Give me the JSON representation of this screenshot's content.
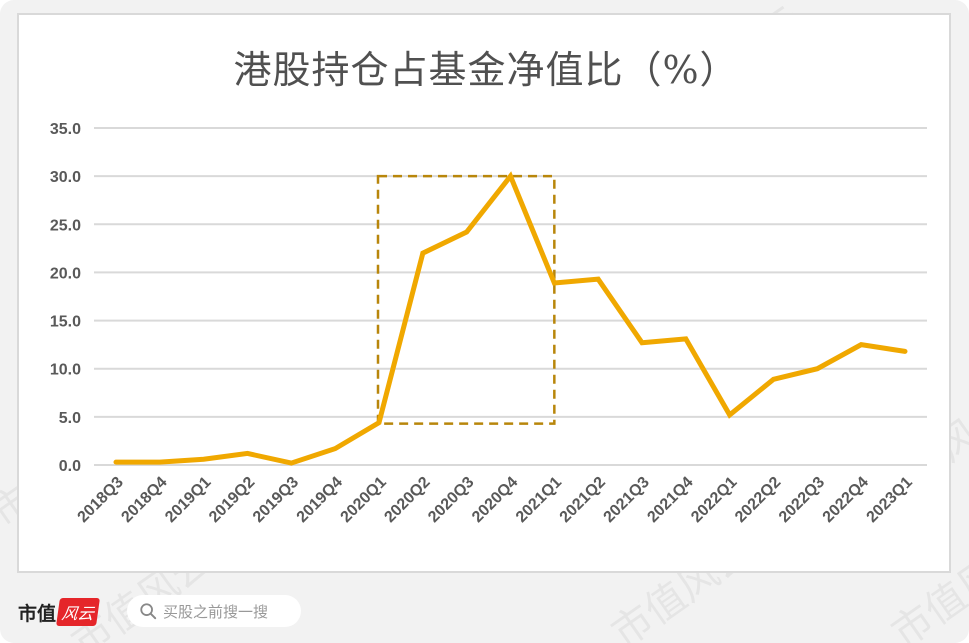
{
  "chart_data": {
    "type": "line",
    "title": "港股持仓占基金净值比（%）",
    "xlabel": "",
    "ylabel": "",
    "ylim": [
      0,
      35
    ],
    "yticks": [
      "0.0",
      "5.0",
      "10.0",
      "15.0",
      "20.0",
      "25.0",
      "30.0",
      "35.0"
    ],
    "grid": true,
    "legend": null,
    "categories": [
      "2018Q3",
      "2018Q4",
      "2019Q1",
      "2019Q2",
      "2019Q3",
      "2019Q4",
      "2020Q1",
      "2020Q2",
      "2020Q3",
      "2020Q4",
      "2021Q1",
      "2021Q2",
      "2021Q3",
      "2021Q4",
      "2022Q1",
      "2022Q2",
      "2022Q3",
      "2022Q4",
      "2023Q1"
    ],
    "series": [
      {
        "name": "港股持仓占基金净值比",
        "color": "#f0a800",
        "values": [
          0.3,
          0.3,
          0.6,
          1.2,
          0.2,
          1.7,
          4.4,
          22.0,
          24.2,
          30.0,
          18.9,
          19.3,
          12.7,
          13.1,
          5.2,
          8.9,
          10.0,
          12.5,
          11.8
        ]
      }
    ],
    "annotations": [
      {
        "type": "dashed-rectangle",
        "from": "2020Q1",
        "to": "2021Q1",
        "y_range": [
          4.4,
          30.0
        ],
        "color": "#b8860b"
      }
    ]
  },
  "watermark": "市值风云",
  "footer": {
    "logo_text": "市值",
    "logo_badge": "风云",
    "search_placeholder": "买股之前搜一搜",
    "search_icon": "search-icon"
  }
}
